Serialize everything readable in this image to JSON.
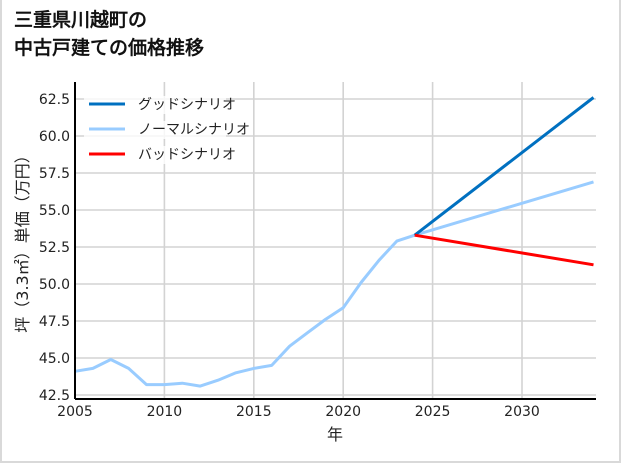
{
  "title_line1": "三重県川越町の",
  "title_line2": "中古戸建ての価格推移",
  "chart_data": {
    "type": "line",
    "title": "三重県川越町の中古戸建ての価格推移",
    "xlabel": "年",
    "ylabel": "坪（3.3㎡）単価（万円）",
    "xlim": [
      2005,
      2034
    ],
    "ylim": [
      42.2,
      63.6
    ],
    "xticks": [
      2005,
      2010,
      2015,
      2020,
      2025,
      2030
    ],
    "yticks": [
      42.5,
      45.0,
      47.5,
      50.0,
      52.5,
      55.0,
      57.5,
      60.0,
      62.5
    ],
    "grid": true,
    "legend_position": "upper left",
    "series": [
      {
        "name": "グッドシナリオ",
        "color": "#0070c0",
        "x": [
          2024,
          2034
        ],
        "values": [
          53.3,
          62.6
        ]
      },
      {
        "name": "ノーマルシナリオ",
        "color": "#99ccff",
        "x": [
          2005,
          2006,
          2007,
          2008,
          2009,
          2010,
          2011,
          2012,
          2013,
          2014,
          2015,
          2016,
          2017,
          2018,
          2019,
          2020,
          2021,
          2022,
          2023,
          2024,
          2034
        ],
        "values": [
          44.1,
          44.3,
          44.9,
          44.3,
          43.2,
          43.2,
          43.3,
          43.1,
          43.5,
          44.0,
          44.3,
          44.5,
          45.8,
          46.7,
          47.6,
          48.4,
          50.1,
          51.6,
          52.9,
          53.3,
          56.9
        ]
      },
      {
        "name": "バッドシナリオ",
        "color": "#ff0000",
        "x": [
          2024,
          2034
        ],
        "values": [
          53.3,
          51.3
        ]
      }
    ]
  }
}
